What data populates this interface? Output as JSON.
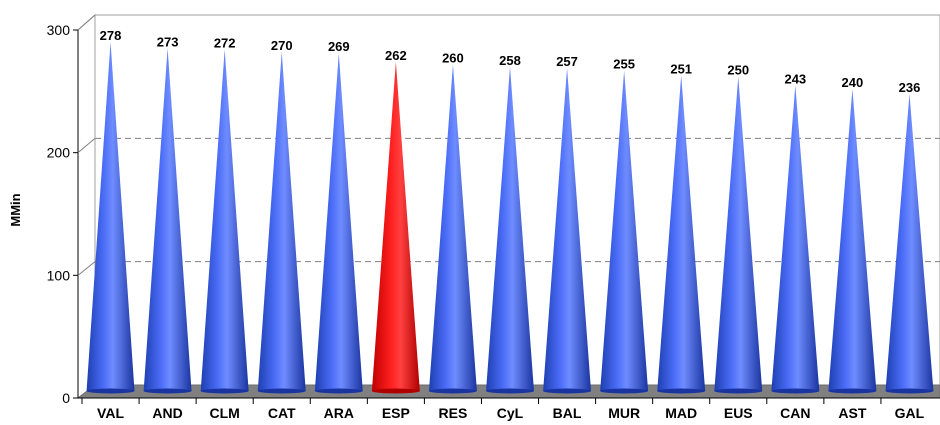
{
  "chart_data": {
    "type": "bar",
    "style": "cone-3d",
    "categories": [
      "VAL",
      "AND",
      "CLM",
      "CAT",
      "ARA",
      "ESP",
      "RES",
      "CyL",
      "BAL",
      "MUR",
      "MAD",
      "EUS",
      "CAN",
      "AST",
      "GAL"
    ],
    "values": [
      278,
      273,
      272,
      270,
      269,
      262,
      260,
      258,
      257,
      255,
      251,
      250,
      243,
      240,
      236
    ],
    "value_labels": [
      "278",
      "273",
      "272",
      "270",
      "269",
      "262",
      "260",
      "258",
      "257",
      "255",
      "251",
      "250",
      "243",
      "240",
      "236"
    ],
    "highlight": "ESP",
    "title": "",
    "xlabel": "",
    "ylabel": "MMin",
    "ylim": [
      0,
      300
    ],
    "yticks": [
      "0",
      "100",
      "200",
      "300"
    ],
    "yticks_values": [
      0,
      100,
      200,
      300
    ],
    "grid": "horizontal dashed",
    "legend": "none",
    "colors": {
      "bar": "#3355ee",
      "bar_highlight": "#ff0000",
      "floor": "#808080",
      "gridline": "#808080"
    }
  }
}
